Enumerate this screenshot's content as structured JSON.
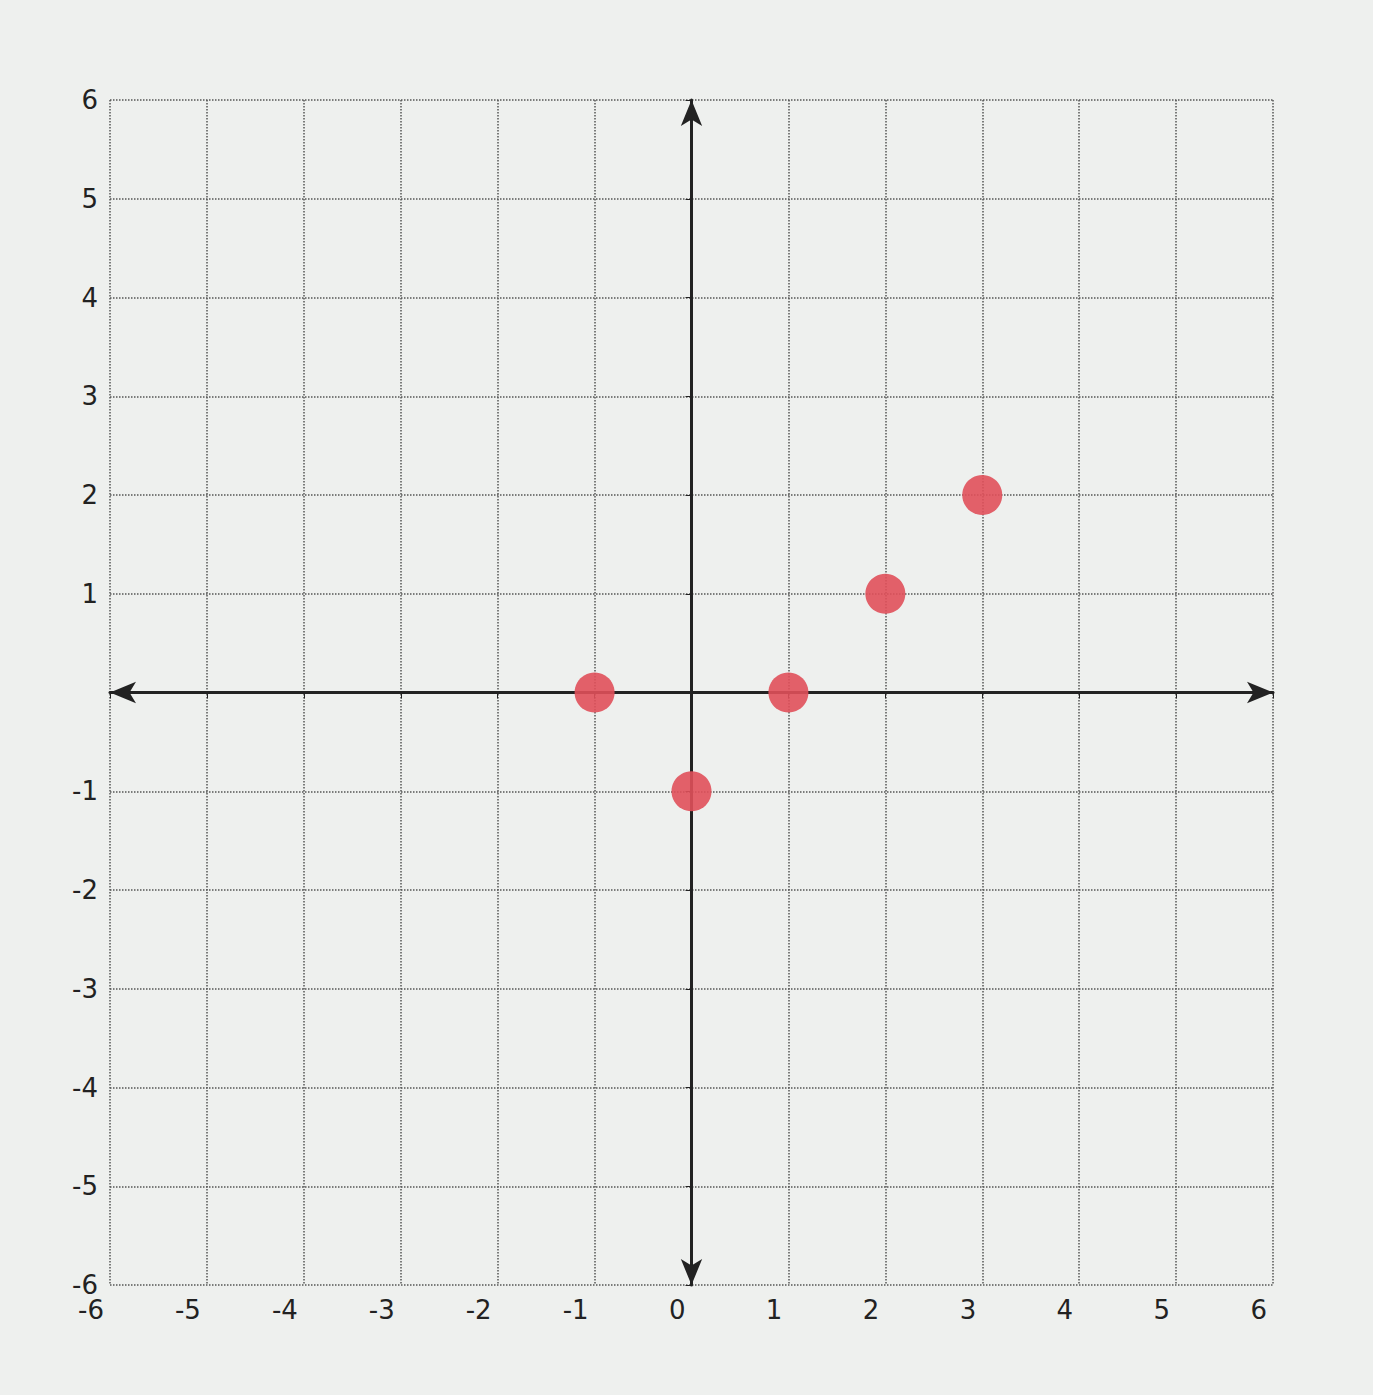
{
  "chart_data": {
    "type": "scatter",
    "x": [
      -1,
      0,
      1,
      2,
      3
    ],
    "values": [
      0,
      -1,
      0,
      1,
      2
    ],
    "color": "#e0505a",
    "marker": "circle",
    "xlim": [
      -6,
      6
    ],
    "xticks": [
      -6,
      -5,
      -4,
      -3,
      -2,
      -1,
      0,
      1,
      2,
      3,
      4,
      5,
      6
    ],
    "ylim": [
      -6,
      6
    ],
    "yticks": [
      -6,
      -5,
      -4,
      -3,
      -2,
      -1,
      1,
      2,
      3,
      4,
      5,
      6
    ],
    "grid": true
  }
}
